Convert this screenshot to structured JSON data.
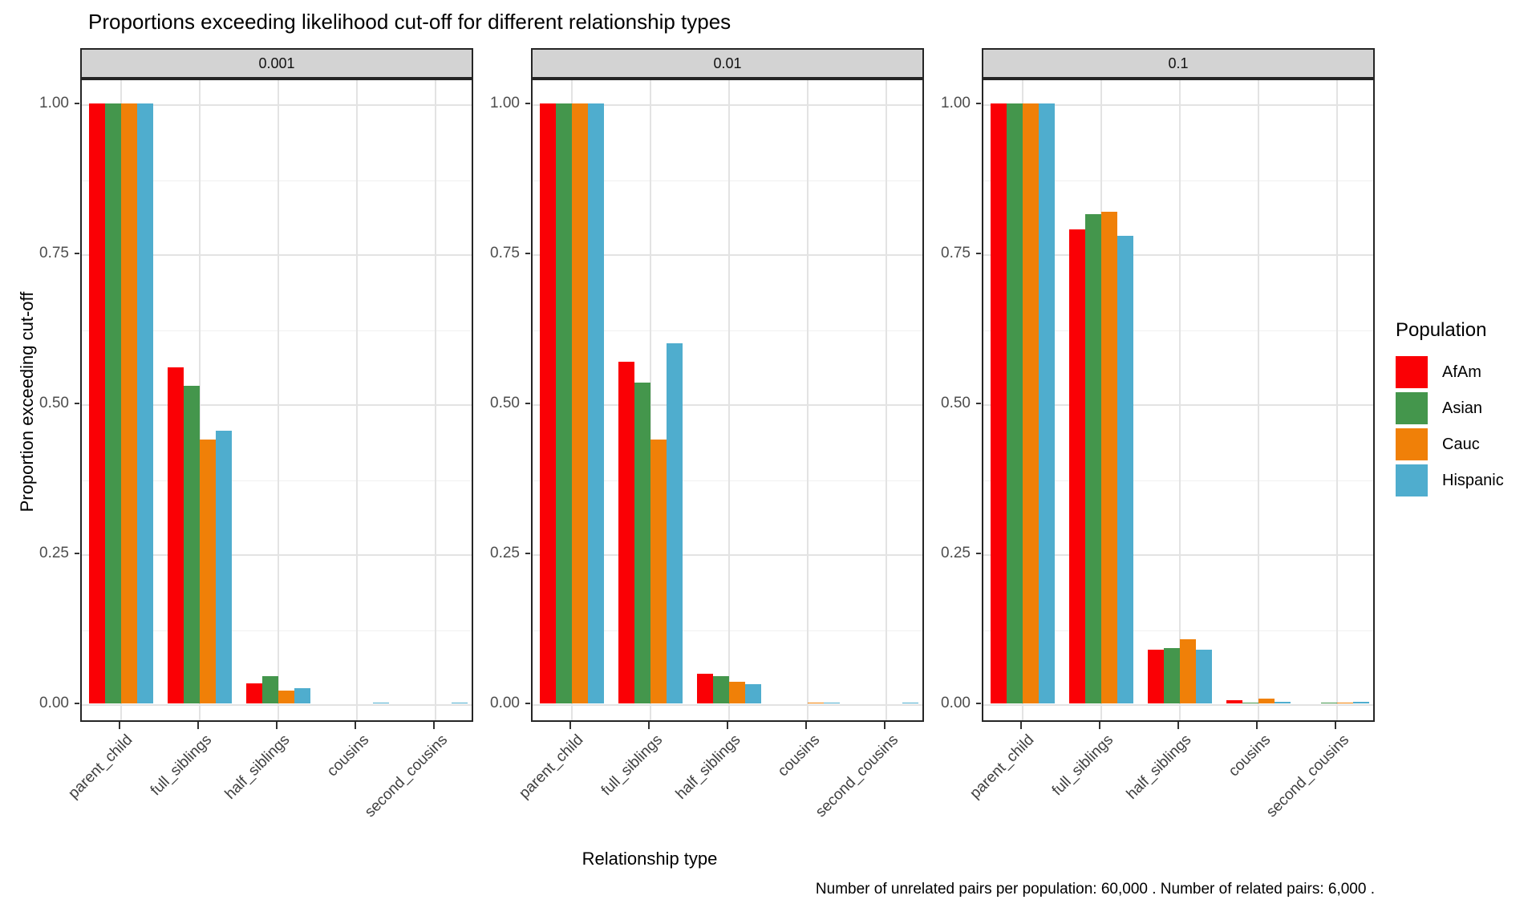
{
  "chart_data": {
    "type": "bar",
    "title": "Proportions exceeding likelihood cut-off for different relationship types",
    "xlabel": "Relationship type",
    "ylabel": "Proportion exceeding cut-off",
    "caption": "Number of unrelated pairs per population:  60,000 . Number of related pairs:  6,000 .",
    "legend_title": "Population",
    "legend_position": "right",
    "grid": true,
    "ylim": [
      0,
      1
    ],
    "y_ticks": [
      "1.00",
      "0.75",
      "0.50",
      "0.25",
      "0.00"
    ],
    "categories": [
      "parent_child",
      "full_siblings",
      "half_siblings",
      "cousins",
      "second_cousins"
    ],
    "facet_labels": [
      "0.001",
      "0.01",
      "0.1"
    ],
    "series_names": [
      "AfAm",
      "Asian",
      "Cauc",
      "Hispanic"
    ],
    "series_colors": {
      "AfAm": "#FA0005",
      "Asian": "#44964C",
      "Cauc": "#F08008",
      "Hispanic": "#4FADCE"
    },
    "facets": [
      {
        "label": "0.001",
        "series": [
          {
            "name": "AfAm",
            "values": [
              1.0,
              0.56,
              0.034,
              0.0,
              0.0
            ]
          },
          {
            "name": "Asian",
            "values": [
              1.0,
              0.53,
              0.045,
              0.0,
              0.0
            ]
          },
          {
            "name": "Cauc",
            "values": [
              1.0,
              0.44,
              0.022,
              0.0,
              0.0
            ]
          },
          {
            "name": "Hispanic",
            "values": [
              1.0,
              0.455,
              0.026,
              0.002,
              0.002
            ]
          }
        ]
      },
      {
        "label": "0.01",
        "series": [
          {
            "name": "AfAm",
            "values": [
              1.0,
              0.57,
              0.049,
              0.0,
              0.0
            ]
          },
          {
            "name": "Asian",
            "values": [
              1.0,
              0.535,
              0.045,
              0.0,
              0.0
            ]
          },
          {
            "name": "Cauc",
            "values": [
              1.0,
              0.44,
              0.036,
              0.002,
              0.0
            ]
          },
          {
            "name": "Hispanic",
            "values": [
              1.0,
              0.6,
              0.032,
              0.002,
              0.002
            ]
          }
        ]
      },
      {
        "label": "0.1",
        "series": [
          {
            "name": "AfAm",
            "values": [
              1.0,
              0.79,
              0.089,
              0.006,
              0.0
            ]
          },
          {
            "name": "Asian",
            "values": [
              1.0,
              0.815,
              0.092,
              0.001,
              0.001
            ]
          },
          {
            "name": "Cauc",
            "values": [
              1.0,
              0.82,
              0.107,
              0.008,
              0.001
            ]
          },
          {
            "name": "Hispanic",
            "values": [
              1.0,
              0.78,
              0.089,
              0.003,
              0.003
            ]
          }
        ]
      }
    ]
  }
}
